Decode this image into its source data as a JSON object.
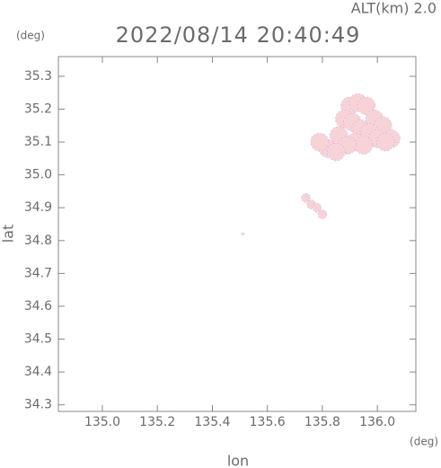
{
  "chart_data": {
    "type": "scatter",
    "title": "2022/08/14 20:40:49",
    "subtitle": "ALT(km) 2.0",
    "x_label": "lon",
    "y_label": "lat",
    "x_unit": "(deg)",
    "y_unit": "(deg)",
    "color": "#f7d3d8",
    "edge_color": "#6a6ae0",
    "x": [
      135.9,
      135.93,
      135.96,
      135.99,
      136.02,
      136.05,
      135.88,
      135.91,
      135.94,
      135.97,
      136.0,
      136.03,
      135.92,
      135.95,
      135.86,
      135.89,
      135.82,
      135.79,
      135.85,
      135.74,
      135.76,
      135.78,
      135.8,
      135.51
    ],
    "y": [
      35.21,
      35.22,
      35.21,
      35.17,
      35.15,
      35.11,
      35.17,
      35.16,
      35.14,
      35.13,
      35.11,
      35.1,
      35.1,
      35.09,
      35.12,
      35.09,
      35.08,
      35.1,
      35.07,
      34.93,
      34.91,
      34.9,
      34.88,
      34.82
    ],
    "xlim": [
      134.84,
      136.14
    ],
    "ylim": [
      34.28,
      35.36
    ],
    "xticks": [
      {
        "value": 135,
        "label": "135.0"
      },
      135.2,
      135.4,
      135.6,
      135.8,
      {
        "value": 136,
        "label": "136.0"
      }
    ],
    "yticks": [
      34.3,
      34.4,
      34.5,
      34.6,
      34.7,
      34.8,
      34.9,
      {
        "value": 35,
        "label": "35.0"
      },
      35.1,
      35.2,
      35.3
    ]
  }
}
